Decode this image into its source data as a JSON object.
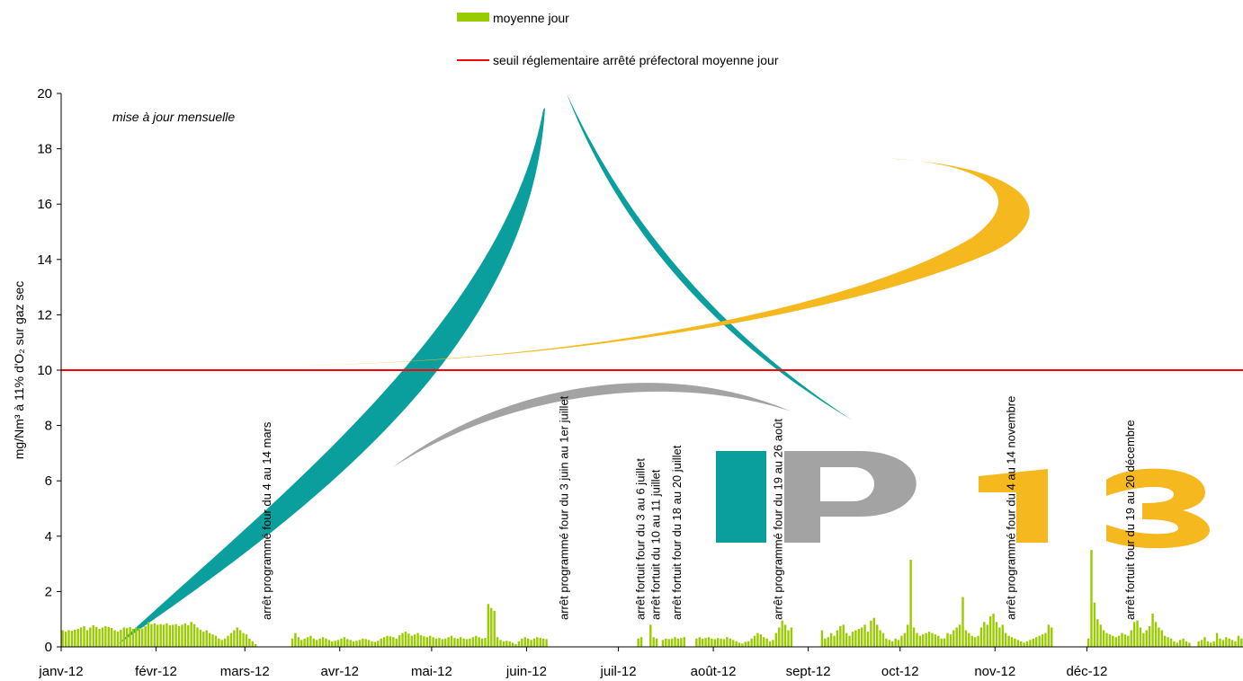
{
  "chart_data": {
    "type": "bar",
    "ylabel": "mg/Nm³ à 11% d'O₂ sur gaz sec",
    "ylim": [
      0,
      20
    ],
    "yticks": [
      "0",
      "2",
      "4",
      "6",
      "8",
      "10",
      "12",
      "14",
      "16",
      "18",
      "20"
    ],
    "months": [
      "janv-12",
      "févr-12",
      "mars-12",
      "avr-12",
      "mai-12",
      "juin-12",
      "juil-12",
      "août-12",
      "sept-12",
      "oct-12",
      "nov-12",
      "déc-12"
    ],
    "note": "mise à jour mensuelle",
    "legend": [
      {
        "label": "moyenne jour",
        "color": "#99cc00",
        "kind": "bar"
      },
      {
        "label": "seuil réglementaire arrêté préfectoral moyenne jour",
        "color": "#ff0000",
        "kind": "line"
      }
    ],
    "threshold": 10,
    "grid": false,
    "annotations": [
      {
        "day": 67,
        "text": "arrêt programmé four du 4 au 14 mars"
      },
      {
        "day": 164,
        "text": "arrêt programmé four du 3 juin au 1er juillet"
      },
      {
        "day": 189,
        "text": "arrêt fortuit four du 3 au 6 juillet"
      },
      {
        "day": 194,
        "text": "arrêt fortuit du 10 au 11 juillet"
      },
      {
        "day": 201,
        "text": "arrêt fortuit four du 18 au 20 juillet"
      },
      {
        "day": 234,
        "text": "arrêt programmé four du 19 au 26 août"
      },
      {
        "day": 310,
        "text": "arrêt programmé four du 4 au 14 novembre"
      },
      {
        "day": 349,
        "text": "arrêt fortuit four du 19 au 20 décembre"
      }
    ],
    "series": [
      {
        "values": [
          0.6,
          0.55,
          0.6,
          0.58,
          0.62,
          0.65,
          0.7,
          0.75,
          0.6,
          0.7,
          0.78,
          0.72,
          0.65,
          0.7,
          0.75,
          0.72,
          0.68,
          0.6,
          0.55,
          0.62,
          0.7,
          0.68,
          0.72,
          0.65,
          0.7,
          0.68,
          0.66,
          0.75,
          0.9,
          0.82,
          0.85,
          0.8,
          0.82,
          0.8,
          0.85,
          0.78,
          0.8,
          0.82,
          0.75,
          0.8,
          0.85,
          0.78,
          0.9,
          0.82,
          0.7,
          0.62,
          0.55,
          0.6,
          0.5,
          0.45,
          0.4,
          0.3,
          0.25,
          0.3,
          0.4,
          0.5,
          0.6,
          0.7,
          0.6,
          0.5,
          0.45,
          0.3,
          0.2,
          0.1,
          0,
          0,
          0,
          0,
          0,
          0,
          0,
          0,
          0,
          0,
          0,
          0.3,
          0.5,
          0.35,
          0.25,
          0.3,
          0.35,
          0.4,
          0.3,
          0.25,
          0.3,
          0.35,
          0.3,
          0.25,
          0.2,
          0.22,
          0.25,
          0.3,
          0.35,
          0.28,
          0.25,
          0.2,
          0.22,
          0.25,
          0.3,
          0.28,
          0.25,
          0.2,
          0.18,
          0.22,
          0.3,
          0.35,
          0.4,
          0.38,
          0.35,
          0.3,
          0.42,
          0.5,
          0.55,
          0.48,
          0.4,
          0.45,
          0.5,
          0.42,
          0.38,
          0.35,
          0.4,
          0.35,
          0.3,
          0.32,
          0.28,
          0.3,
          0.35,
          0.4,
          0.32,
          0.3,
          0.35,
          0.3,
          0.28,
          0.3,
          0.35,
          0.4,
          0.35,
          0.3,
          0.32,
          1.55,
          1.4,
          1.3,
          0.35,
          0.25,
          0.2,
          0.22,
          0.2,
          0.15,
          0.1,
          0.2,
          0.3,
          0.35,
          0.3,
          0.25,
          0.3,
          0.35,
          0.32,
          0.3,
          0.28,
          0,
          0,
          0,
          0,
          0,
          0,
          0,
          0,
          0,
          0,
          0,
          0,
          0,
          0,
          0,
          0,
          0,
          0,
          0,
          0,
          0,
          0,
          0,
          0,
          0,
          0,
          0,
          0,
          0,
          0.3,
          0.35,
          0,
          0,
          0.8,
          0.35,
          0.3,
          0,
          0.25,
          0.3,
          0.28,
          0.3,
          0.35,
          0.3,
          0.32,
          0.35,
          0,
          0,
          0,
          0.3,
          0.35,
          0.3,
          0.32,
          0.35,
          0.3,
          0.28,
          0.32,
          0.3,
          0.28,
          0.35,
          0.3,
          0.25,
          0.2,
          0.15,
          0.12,
          0.18,
          0.2,
          0.3,
          0.4,
          0.5,
          0.45,
          0.35,
          0.3,
          0.2,
          0.25,
          0.5,
          0.7,
          0.95,
          0.8,
          0.6,
          0.7,
          0,
          0,
          0,
          0,
          0,
          0,
          0,
          0,
          0,
          0.6,
          0.3,
          0.35,
          0.5,
          0.4,
          0.6,
          0.75,
          0.8,
          0.5,
          0.4,
          0.55,
          0.6,
          0.65,
          0.7,
          0.8,
          0.55,
          0.95,
          1.05,
          0.8,
          0.6,
          0.5,
          0.3,
          0.25,
          0.2,
          0.3,
          0.25,
          0.4,
          0.5,
          0.8,
          3.15,
          0.7,
          0.5,
          0.4,
          0.45,
          0.5,
          0.55,
          0.5,
          0.45,
          0.4,
          0.3,
          0.3,
          0.5,
          0.45,
          0.6,
          0.7,
          0.8,
          1.8,
          0.6,
          0.5,
          0.4,
          0.35,
          0.4,
          0.7,
          0.9,
          0.8,
          1.1,
          1.2,
          0.9,
          0.7,
          0.8,
          0.5,
          0.4,
          0.35,
          0.3,
          0.25,
          0.2,
          0.15,
          0.2,
          0.25,
          0.3,
          0.35,
          0.4,
          0.45,
          0.5,
          0.8,
          0.7,
          0,
          0,
          0,
          0,
          0,
          0,
          0,
          0,
          0,
          0,
          0,
          0.3,
          3.5,
          1.6,
          1.0,
          0.8,
          0.6,
          0.5,
          0.45,
          0.4,
          0.35,
          0.4,
          0.5,
          0.45,
          0.4,
          0.6,
          0.9,
          0.95,
          0.7,
          0.5,
          0.6,
          0.75,
          1.2,
          0.9,
          0.7,
          0.6,
          0.4,
          0.35,
          0.3,
          0.2,
          0.15,
          0.25,
          0.3,
          0.2,
          0.15,
          0,
          0,
          0.2,
          0.25,
          0.35,
          0.2,
          0.15,
          0.2,
          0.5,
          0.3,
          0.25,
          0.35,
          0.3,
          0.25,
          0.2,
          0.4,
          0.3
        ]
      }
    ]
  }
}
